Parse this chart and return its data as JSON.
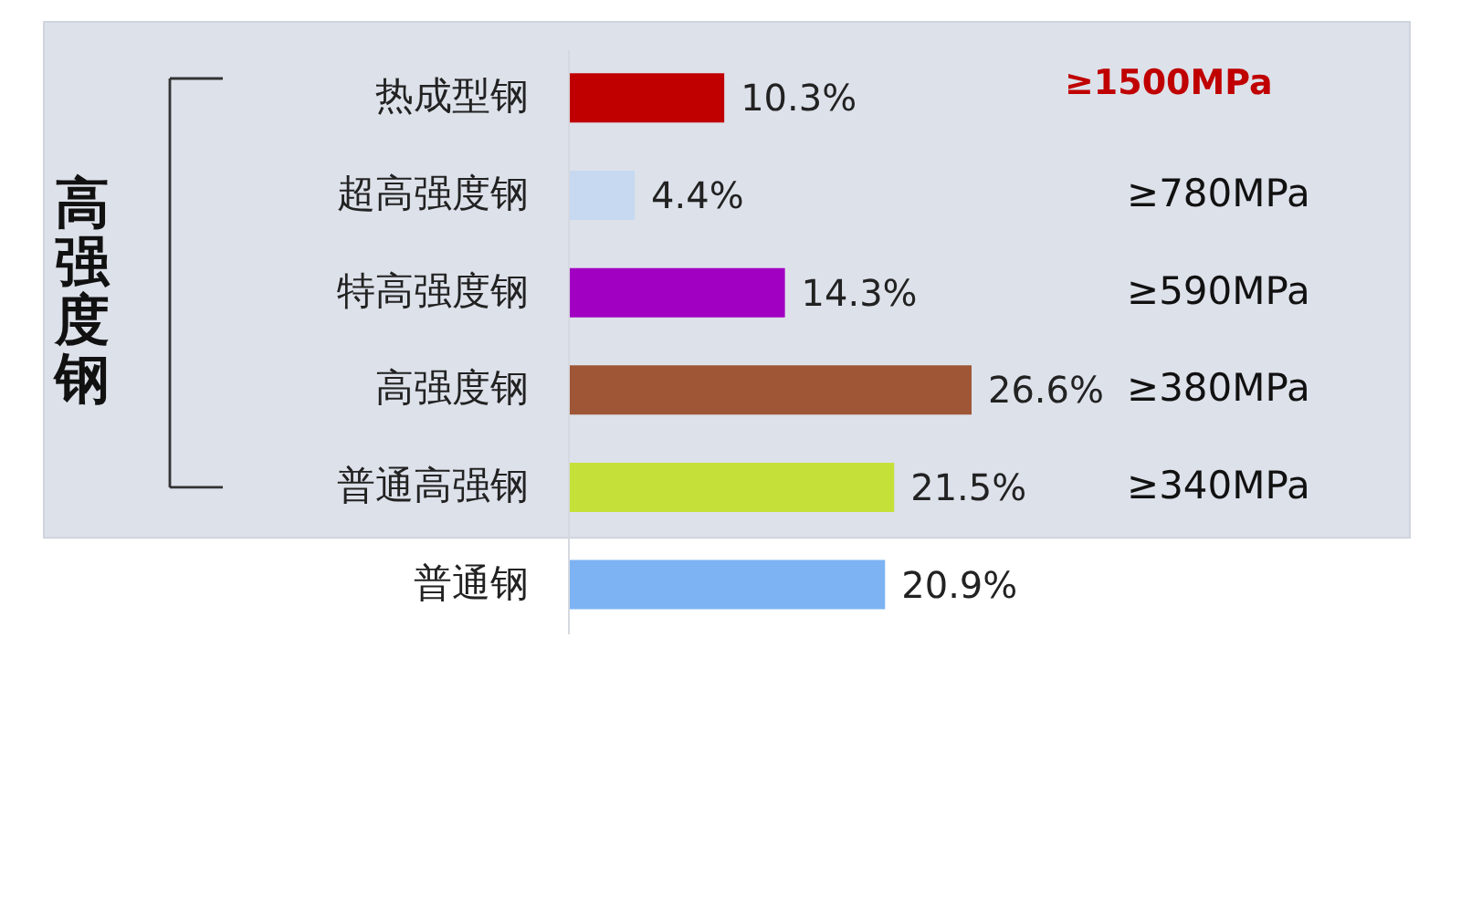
{
  "chart_data": {
    "type": "bar",
    "orientation": "horizontal",
    "categories": [
      "热成型钢",
      "超高强度钢",
      "特高强度钢",
      "高强度钢",
      "普通高强钢",
      "普通钢"
    ],
    "values": [
      10.3,
      4.4,
      14.3,
      26.6,
      21.5,
      20.9
    ],
    "value_labels": [
      "10.3%",
      "4.4%",
      "14.3%",
      "26.6%",
      "21.5%",
      "20.9%"
    ],
    "colors": [
      "#c00000",
      "#c6d9f0",
      "#a100c2",
      "#9e5637",
      "#c6e03a",
      "#7db3f2"
    ],
    "bands": [
      {
        "axis": "y",
        "from": "热成型钢",
        "to": "普通高强钢",
        "label": "高强度钢",
        "color": "#dde1ea"
      }
    ],
    "annotations": [
      "≥1500MPa",
      "≥780MPa",
      "≥590MPa",
      "≥380MPa",
      "≥340MPa"
    ],
    "tick_labels": "y"
  }
}
